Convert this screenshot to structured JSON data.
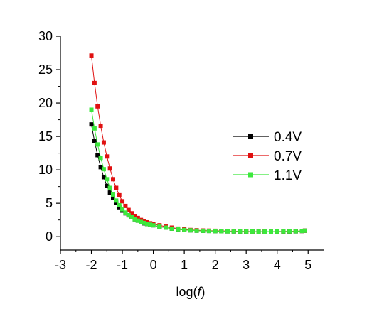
{
  "chart_data": {
    "type": "line",
    "title": "",
    "xlabel_prefix": "log(",
    "xlabel_var": "f",
    "xlabel_suffix": ")",
    "ylabel": "",
    "xlim": [
      -3,
      5.5
    ],
    "ylim": [
      -2,
      30
    ],
    "x_ticks": [
      -3,
      -2,
      -1,
      0,
      1,
      2,
      3,
      4,
      5
    ],
    "y_ticks": [
      0,
      5,
      10,
      15,
      20,
      25,
      30
    ],
    "grid": false,
    "legend_position": "right",
    "series": [
      {
        "name": "0.4V",
        "color": "#000000",
        "x": [
          -2.0,
          -1.9,
          -1.8,
          -1.7,
          -1.6,
          -1.5,
          -1.4,
          -1.3,
          -1.2,
          -1.1,
          -1.0,
          -0.9,
          -0.8,
          -0.7,
          -0.6,
          -0.5,
          -0.4,
          -0.3,
          -0.2,
          -0.1,
          0.0,
          0.2,
          0.4,
          0.6,
          0.8,
          1.0,
          1.2,
          1.4,
          1.6,
          1.8,
          2.0,
          2.2,
          2.4,
          2.6,
          2.8,
          3.0,
          3.2,
          3.4,
          3.6,
          3.8,
          4.0,
          4.2,
          4.4,
          4.6,
          4.8,
          4.9
        ],
        "values": [
          16.8,
          14.3,
          12.2,
          10.4,
          8.9,
          7.6,
          6.6,
          5.8,
          5.1,
          4.4,
          3.9,
          3.5,
          3.2,
          2.9,
          2.6,
          2.4,
          2.2,
          2.0,
          1.9,
          1.8,
          1.7,
          1.5,
          1.35,
          1.2,
          1.1,
          1.0,
          0.95,
          0.9,
          0.88,
          0.86,
          0.84,
          0.82,
          0.8,
          0.79,
          0.78,
          0.77,
          0.77,
          0.76,
          0.76,
          0.76,
          0.76,
          0.77,
          0.78,
          0.8,
          0.85,
          0.9
        ]
      },
      {
        "name": "0.7V",
        "color": "#e01010",
        "x": [
          -2.0,
          -1.9,
          -1.8,
          -1.7,
          -1.6,
          -1.5,
          -1.4,
          -1.3,
          -1.2,
          -1.1,
          -1.0,
          -0.9,
          -0.8,
          -0.7,
          -0.6,
          -0.5,
          -0.4,
          -0.3,
          -0.2,
          -0.1,
          0.0,
          0.2,
          0.4,
          0.6,
          0.8,
          1.0,
          1.2,
          1.4,
          1.6,
          1.8,
          2.0,
          2.2,
          2.4,
          2.6,
          2.8,
          3.0,
          3.2,
          3.4,
          3.6,
          3.8,
          4.0,
          4.2,
          4.4,
          4.6,
          4.8,
          4.9
        ],
        "values": [
          27.1,
          23.0,
          19.5,
          16.6,
          14.1,
          12.0,
          10.2,
          8.6,
          7.3,
          6.2,
          5.3,
          4.6,
          4.0,
          3.5,
          3.1,
          2.8,
          2.5,
          2.3,
          2.15,
          2.0,
          1.9,
          1.7,
          1.5,
          1.35,
          1.2,
          1.1,
          1.0,
          0.96,
          0.92,
          0.9,
          0.88,
          0.86,
          0.84,
          0.82,
          0.8,
          0.79,
          0.78,
          0.77,
          0.77,
          0.77,
          0.78,
          0.79,
          0.8,
          0.82,
          0.86,
          0.9
        ]
      },
      {
        "name": "1.1V",
        "color": "#3ce83c",
        "x": [
          -2.0,
          -1.9,
          -1.8,
          -1.7,
          -1.6,
          -1.5,
          -1.4,
          -1.3,
          -1.2,
          -1.1,
          -1.0,
          -0.9,
          -0.8,
          -0.7,
          -0.6,
          -0.5,
          -0.4,
          -0.3,
          -0.2,
          -0.1,
          0.0,
          0.2,
          0.4,
          0.6,
          0.8,
          1.0,
          1.2,
          1.4,
          1.6,
          1.8,
          2.0,
          2.2,
          2.4,
          2.6,
          2.8,
          3.0,
          3.2,
          3.4,
          3.6,
          3.8,
          4.0,
          4.2,
          4.4,
          4.6,
          4.8,
          4.9
        ],
        "values": [
          19.0,
          16.2,
          13.8,
          11.8,
          10.1,
          8.6,
          7.3,
          6.3,
          5.4,
          4.7,
          4.1,
          3.6,
          3.2,
          2.9,
          2.6,
          2.4,
          2.2,
          2.05,
          1.9,
          1.8,
          1.7,
          1.5,
          1.35,
          1.2,
          1.1,
          1.0,
          0.95,
          0.9,
          0.88,
          0.86,
          0.84,
          0.82,
          0.8,
          0.79,
          0.78,
          0.77,
          0.77,
          0.76,
          0.76,
          0.76,
          0.77,
          0.78,
          0.79,
          0.81,
          0.86,
          0.9
        ]
      }
    ]
  }
}
